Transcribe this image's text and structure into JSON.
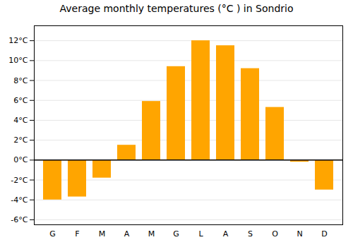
{
  "chart_data": {
    "type": "bar",
    "title": "Average monthly temperatures (°C ) in Sondrio",
    "categories": [
      "G",
      "F",
      "M",
      "A",
      "M",
      "G",
      "L",
      "A",
      "S",
      "O",
      "N",
      "D"
    ],
    "values": [
      -4.0,
      -3.7,
      -1.8,
      1.5,
      5.9,
      9.4,
      12.0,
      11.5,
      9.2,
      5.3,
      -0.2,
      -3.0
    ],
    "color": "#FFA500",
    "ylim": [
      -6.5,
      13.5
    ],
    "yticks": [
      {
        "value": -6,
        "label": "-6°C"
      },
      {
        "value": -4,
        "label": "-4°C"
      },
      {
        "value": -2,
        "label": "-2°C"
      },
      {
        "value": 0,
        "label": "0°C"
      },
      {
        "value": 2,
        "label": "2°C"
      },
      {
        "value": 4,
        "label": "4°C"
      },
      {
        "value": 6,
        "label": "6°C"
      },
      {
        "value": 8,
        "label": "8°C"
      },
      {
        "value": 10,
        "label": "10°C"
      },
      {
        "value": 12,
        "label": "12°C"
      }
    ],
    "grid": true
  }
}
